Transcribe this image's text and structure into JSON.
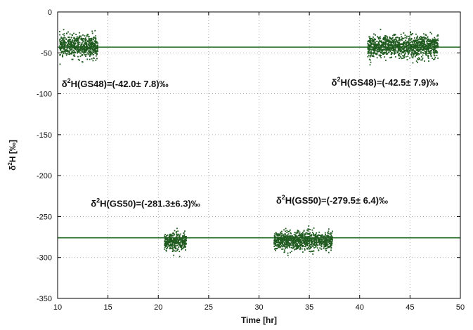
{
  "chart_data": {
    "type": "scatter",
    "title": "",
    "xlabel": "Time [hr]",
    "ylabel_main": "δ",
    "ylabel_sup": "2",
    "ylabel_rest": "H  [‰]",
    "xlim": [
      10,
      50
    ],
    "ylim": [
      -350,
      0
    ],
    "xticks": [
      10,
      15,
      20,
      25,
      30,
      35,
      40,
      45,
      50
    ],
    "yticks": [
      0,
      -50,
      -100,
      -150,
      -200,
      -250,
      -300,
      -350
    ],
    "grid": true,
    "legend": "none",
    "point_color": "#1f5a1f",
    "line_color": "#1f6a1f",
    "reference_lines": [
      {
        "y": -43
      },
      {
        "y": -276
      }
    ],
    "series": [
      {
        "x_range": [
          10.2,
          14.0
        ],
        "mean": -42.0,
        "sd": 7.8
      },
      {
        "x_range": [
          40.8,
          47.8
        ],
        "mean": -42.5,
        "sd": 7.9
      },
      {
        "x_range": [
          20.6,
          22.8
        ],
        "mean": -281.3,
        "sd": 6.3
      },
      {
        "x_range": [
          31.5,
          37.3
        ],
        "mean": -279.5,
        "sd": 6.4
      }
    ],
    "annotations": [
      {
        "pre": "δ",
        "sup": "2",
        "text": "H(GS48)=(-42.0± 7.8)‰",
        "x": 10.4,
        "y": -92
      },
      {
        "pre": "δ",
        "sup": "2",
        "text": "H(GS48)=(-42.5± 7.9)‰",
        "x": 37.2,
        "y": -90
      },
      {
        "pre": "δ",
        "sup": "2",
        "text": "H(GS50)=(-281.3±6.3)‰",
        "x": 13.3,
        "y": -238
      },
      {
        "pre": "δ",
        "sup": "2",
        "text": "H(GS50)=(-279.5± 6.4)‰",
        "x": 31.7,
        "y": -234
      }
    ]
  }
}
